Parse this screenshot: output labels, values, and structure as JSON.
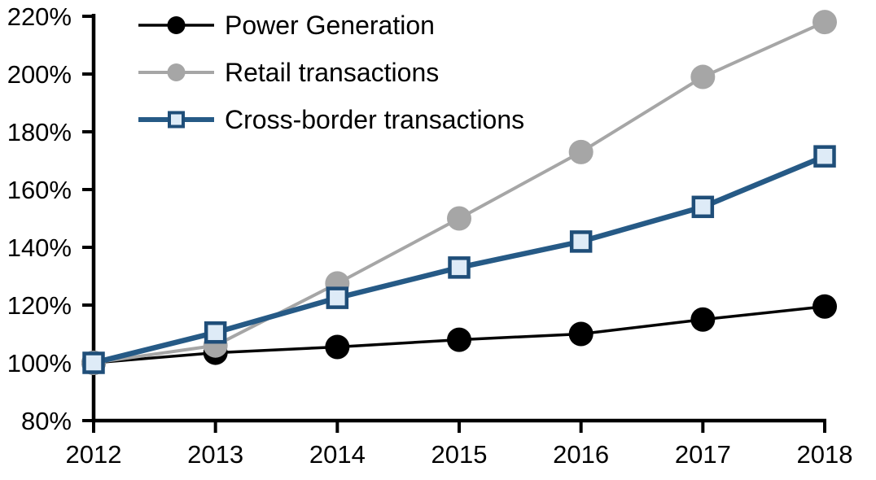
{
  "chart_data": {
    "type": "line",
    "title": "",
    "xlabel": "",
    "ylabel": "",
    "x": [
      "2012",
      "2013",
      "2014",
      "2015",
      "2016",
      "2017",
      "2018"
    ],
    "series": [
      {
        "name": "Power Generation",
        "values": [
          100,
          103.5,
          105.5,
          108,
          110,
          115,
          119.5
        ],
        "color": "#000000",
        "marker": "circle",
        "marker_fill": "#000000",
        "marker_stroke": "#000000",
        "line_width": 3.5
      },
      {
        "name": "Retail transactions",
        "values": [
          100,
          106,
          127.5,
          150,
          173,
          199,
          218
        ],
        "color": "#A6A6A6",
        "marker": "circle",
        "marker_fill": "#A6A6A6",
        "marker_stroke": "#A6A6A6",
        "line_width": 4
      },
      {
        "name": "Cross-border transactions",
        "values": [
          100,
          110.5,
          122.5,
          133,
          142,
          154,
          171.5
        ],
        "color": "#265A86",
        "marker": "square",
        "marker_fill": "#DEEBF7",
        "marker_stroke": "#1F4E79",
        "line_width": 6.5
      }
    ],
    "ylim": [
      80,
      220
    ],
    "ytick_step": 20,
    "ytick_suffix": "%",
    "yticks": [
      "80%",
      "100%",
      "120%",
      "140%",
      "160%",
      "180%",
      "200%",
      "220%"
    ],
    "grid": false,
    "legend_position": "top-left",
    "axis_color": "#000000",
    "text_color": "#000000"
  }
}
